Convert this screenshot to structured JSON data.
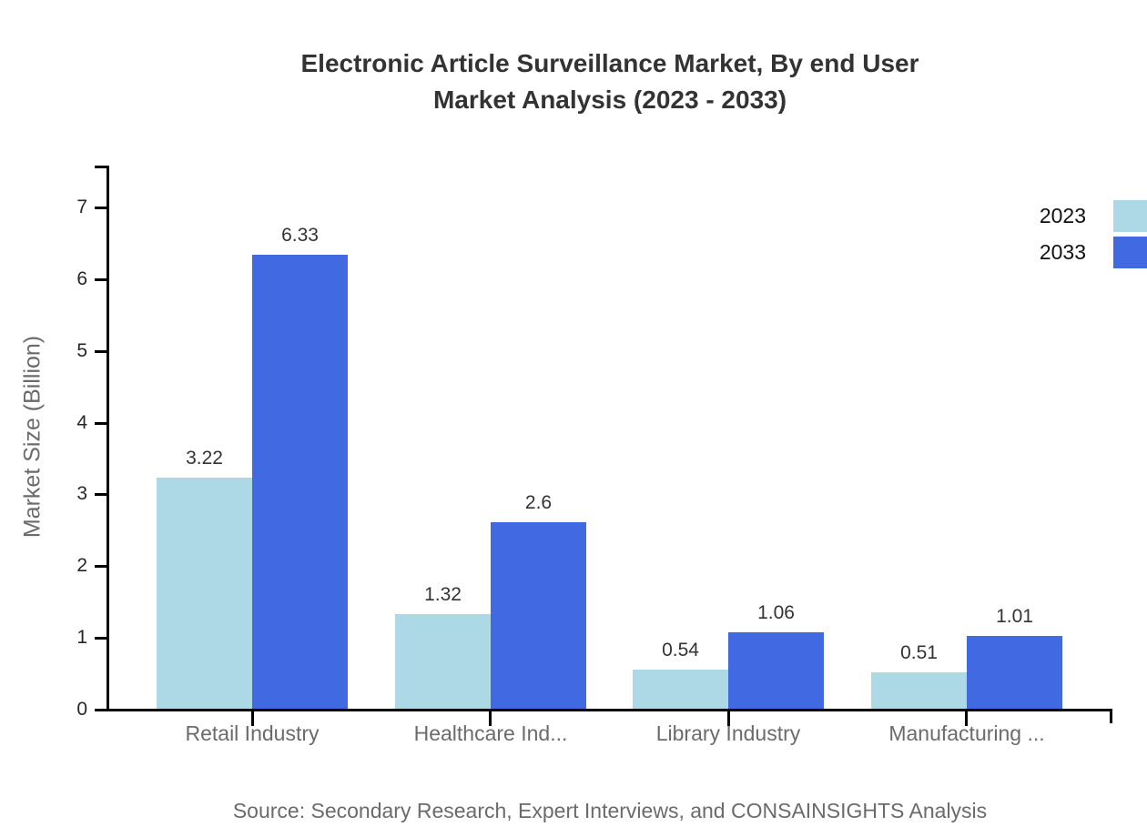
{
  "title": {
    "line1": "Electronic Article Surveillance Market, By end User",
    "line2": "Market Analysis (2023 - 2033)"
  },
  "source": "Source: Secondary Research, Expert Interviews, and CONSAINSIGHTS Analysis",
  "legend": {
    "items": [
      {
        "label": "2023",
        "color": "#ADD8E6"
      },
      {
        "label": "2033",
        "color": "#4169E1"
      }
    ]
  },
  "chart_data": {
    "type": "bar",
    "title": "Electronic Article Surveillance Market, By end User Market Analysis (2023 - 2033)",
    "categories": [
      "Retail Industry",
      "Healthcare Ind...",
      "Library Industry",
      "Manufacturing ..."
    ],
    "series": [
      {
        "name": "2023",
        "color": "#ADD8E6",
        "values": [
          3.22,
          1.32,
          0.54,
          0.51
        ]
      },
      {
        "name": "2033",
        "color": "#4169E1",
        "values": [
          6.33,
          2.6,
          1.06,
          1.01
        ]
      }
    ],
    "value_labels": [
      [
        "3.22",
        "1.32",
        "0.54",
        "0.51"
      ],
      [
        "6.33",
        "2.6",
        "1.06",
        "1.01"
      ]
    ],
    "xlabel": "",
    "ylabel": "Market Size (Billion)",
    "ylim": [
      0,
      7
    ],
    "yticks": [
      "0",
      "1",
      "2",
      "3",
      "4",
      "5",
      "6",
      "7"
    ],
    "grid": false,
    "legend_position": "top-right",
    "axis_color": "#000000"
  }
}
